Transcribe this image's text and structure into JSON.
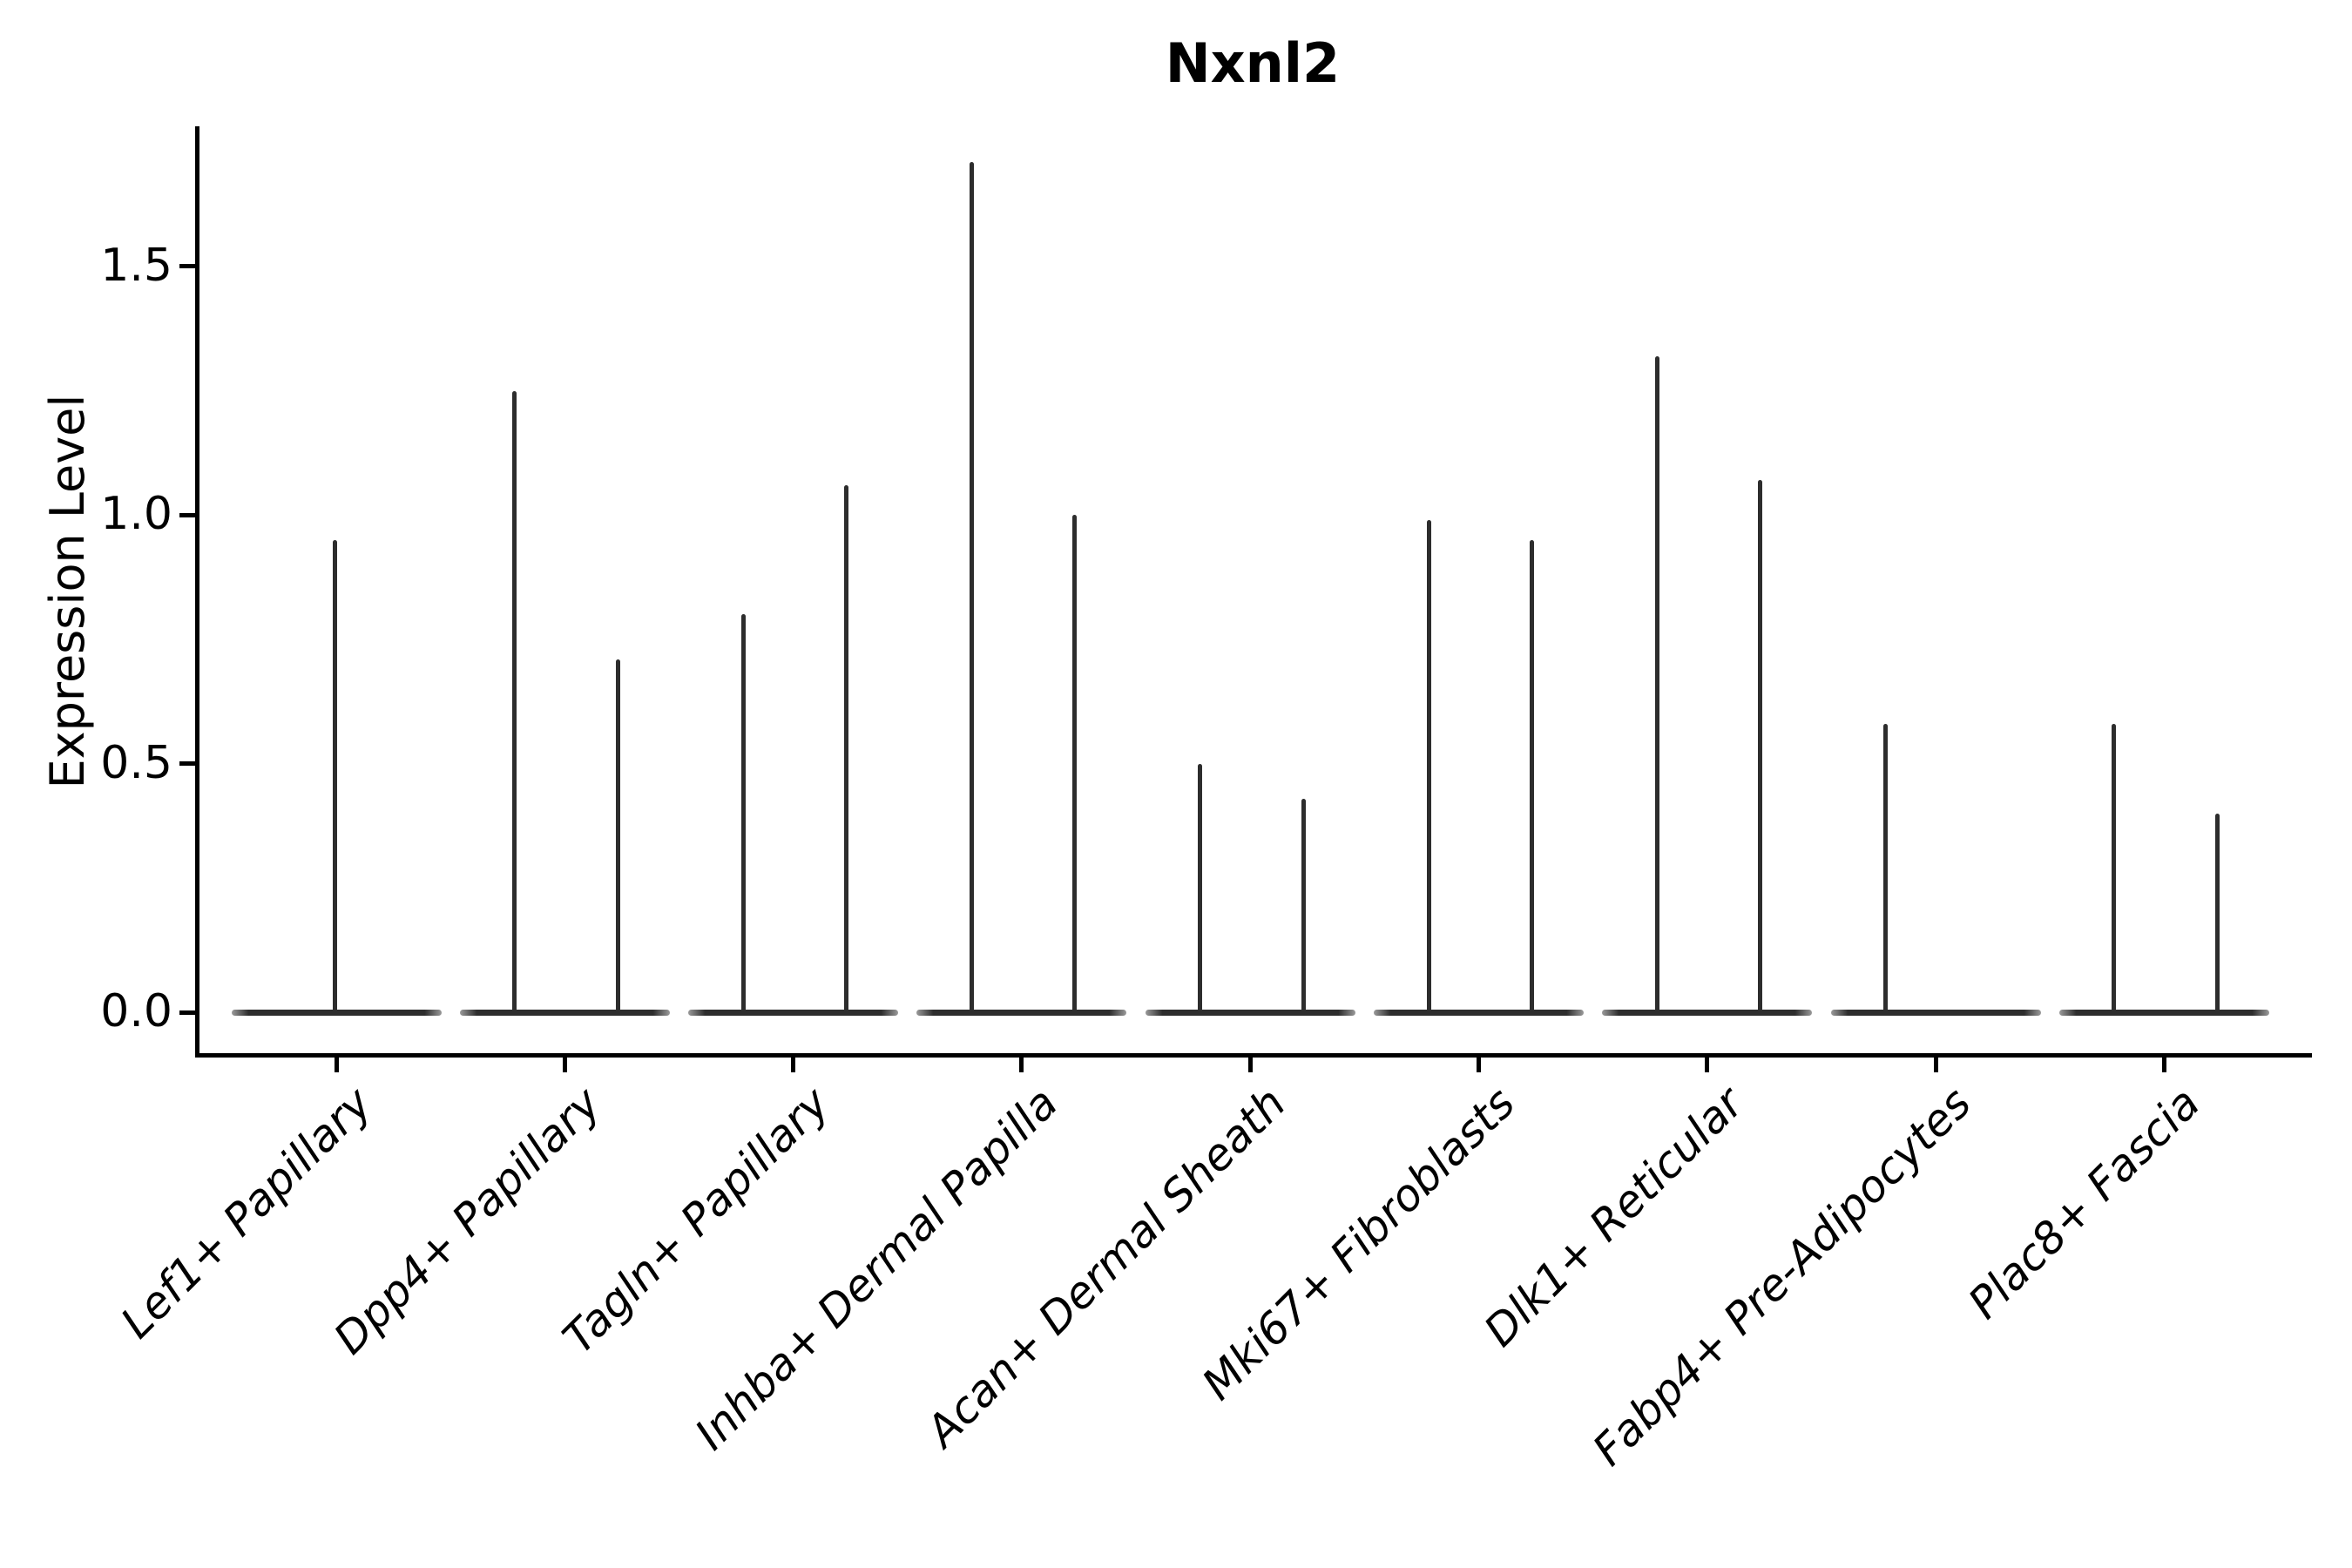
{
  "figure": {
    "title": "Nxnl2",
    "ylabel": "Expression Level"
  },
  "chart_data": {
    "type": "violin",
    "title": "Nxnl2",
    "xlabel": "",
    "ylabel": "Expression Level",
    "yticks": [
      0.0,
      0.5,
      1.0,
      1.5
    ],
    "ylim": [
      -0.09,
      1.79
    ],
    "grid": false,
    "legend": "none",
    "x_tick_rotation_deg": 45,
    "x_tick_style": "italic",
    "description": "Violin plot of Nxnl2 expression per cell type. Nearly all cells have expression 0, producing a wide flat violin base at y=0 for each category, with sparse expressing cells forming thin vertical density spikes reaching the max expression value. Most categories show two dodged violins (left/right); Lef1+ Papillary has a single centered spike and Fabp4+ Pre-Adipocytes only a left spike.",
    "categories": [
      "Lef1+ Papillary",
      "Dpp4+ Papillary",
      "Tagln+ Papillary",
      "Inhba+ Dermal Papilla",
      "Acan+ Dermal Sheath",
      "Mki67+ Fibroblasts",
      "Dlk1+ Reticular",
      "Fabp4+ Pre-Adipocytes",
      "Plac8+ Fascia"
    ],
    "series": [
      {
        "category": "Lef1+ Papillary",
        "violins": [
          {
            "position": "center",
            "max_expression": 0.95
          }
        ]
      },
      {
        "category": "Dpp4+ Papillary",
        "violins": [
          {
            "position": "left",
            "max_expression": 1.25
          },
          {
            "position": "right",
            "max_expression": 0.71
          }
        ]
      },
      {
        "category": "Tagln+ Papillary",
        "violins": [
          {
            "position": "left",
            "max_expression": 0.8
          },
          {
            "position": "right",
            "max_expression": 1.06
          }
        ]
      },
      {
        "category": "Inhba+ Dermal Papilla",
        "violins": [
          {
            "position": "left",
            "max_expression": 1.71
          },
          {
            "position": "right",
            "max_expression": 1.0
          }
        ]
      },
      {
        "category": "Acan+ Dermal Sheath",
        "violins": [
          {
            "position": "left",
            "max_expression": 0.5
          },
          {
            "position": "right",
            "max_expression": 0.43
          }
        ]
      },
      {
        "category": "Mki67+ Fibroblasts",
        "violins": [
          {
            "position": "left",
            "max_expression": 0.99
          },
          {
            "position": "right",
            "max_expression": 0.95
          }
        ]
      },
      {
        "category": "Dlk1+ Reticular",
        "violins": [
          {
            "position": "left",
            "max_expression": 1.32
          },
          {
            "position": "right",
            "max_expression": 1.07
          }
        ]
      },
      {
        "category": "Fabp4+ Pre-Adipocytes",
        "violins": [
          {
            "position": "left",
            "max_expression": 0.58
          }
        ]
      },
      {
        "category": "Plac8+ Fascia",
        "violins": [
          {
            "position": "left",
            "max_expression": 0.58
          },
          {
            "position": "right",
            "max_expression": 0.4
          }
        ]
      }
    ],
    "colors": {
      "violin": "#2d2d2d",
      "axis": "#000000",
      "background": "#ffffff"
    }
  }
}
